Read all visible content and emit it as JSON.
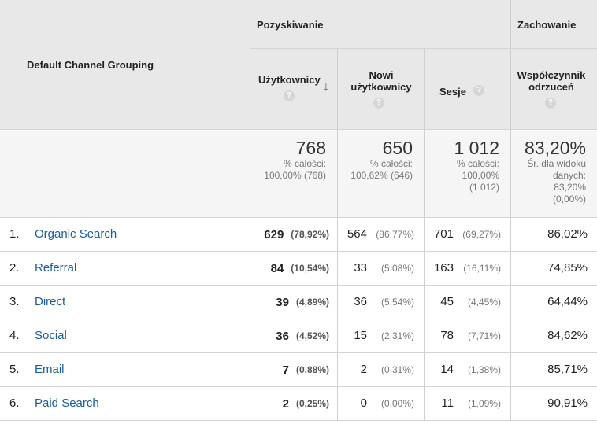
{
  "header": {
    "dimension_label": "Default Channel Grouping",
    "group_acquisition": "Pozyskiwanie",
    "group_behavior": "Zachowanie",
    "col_users": "Użytkownicy",
    "col_new_users_line1": "Nowi",
    "col_new_users_line2": "użytkownicy",
    "col_sessions": "Sesje",
    "col_bounce_line1": "Współczynnik",
    "col_bounce_line2": "odrzuceń",
    "help_icon": "?"
  },
  "totals": {
    "users": {
      "value": "768",
      "line1": "% całości:",
      "line2": "100,00% (768)"
    },
    "new_users": {
      "value": "650",
      "line1": "% całości:",
      "line2": "100,62% (646)"
    },
    "sessions": {
      "value": "1 012",
      "line1": "% całości:",
      "line2": "100,00%",
      "line3": "(1 012)"
    },
    "bounce": {
      "value": "83,20%",
      "line1": "Śr. dla widoku",
      "line2": "danych:",
      "line3": "83,20%",
      "line4": "(0,00%)"
    }
  },
  "rows": [
    {
      "num": "1.",
      "channel": "Organic Search",
      "users": "629",
      "users_pct": "(78,92%)",
      "new_users": "564",
      "new_users_pct": "(86,77%)",
      "sessions": "701",
      "sessions_pct": "(69,27%)",
      "bounce": "86,02%"
    },
    {
      "num": "2.",
      "channel": "Referral",
      "users": "84",
      "users_pct": "(10,54%)",
      "new_users": "33",
      "new_users_pct": "(5,08%)",
      "sessions": "163",
      "sessions_pct": "(16,11%)",
      "bounce": "74,85%"
    },
    {
      "num": "3.",
      "channel": "Direct",
      "users": "39",
      "users_pct": "(4,89%)",
      "new_users": "36",
      "new_users_pct": "(5,54%)",
      "sessions": "45",
      "sessions_pct": "(4,45%)",
      "bounce": "64,44%"
    },
    {
      "num": "4.",
      "channel": "Social",
      "users": "36",
      "users_pct": "(4,52%)",
      "new_users": "15",
      "new_users_pct": "(2,31%)",
      "sessions": "78",
      "sessions_pct": "(7,71%)",
      "bounce": "84,62%"
    },
    {
      "num": "5.",
      "channel": "Email",
      "users": "7",
      "users_pct": "(0,88%)",
      "new_users": "2",
      "new_users_pct": "(0,31%)",
      "sessions": "14",
      "sessions_pct": "(1,38%)",
      "bounce": "85,71%"
    },
    {
      "num": "6.",
      "channel": "Paid Search",
      "users": "2",
      "users_pct": "(0,25%)",
      "new_users": "0",
      "new_users_pct": "(0,00%)",
      "sessions": "11",
      "sessions_pct": "(1,09%)",
      "bounce": "90,91%"
    }
  ],
  "colors": {
    "header_bg": "#e8e8e8",
    "totals_bg": "#f5f5f5",
    "link": "#1a5ea0",
    "border": "#cfcfcf"
  },
  "icons": {
    "sort": "arrow-down-icon",
    "help": "question-circle-icon"
  }
}
